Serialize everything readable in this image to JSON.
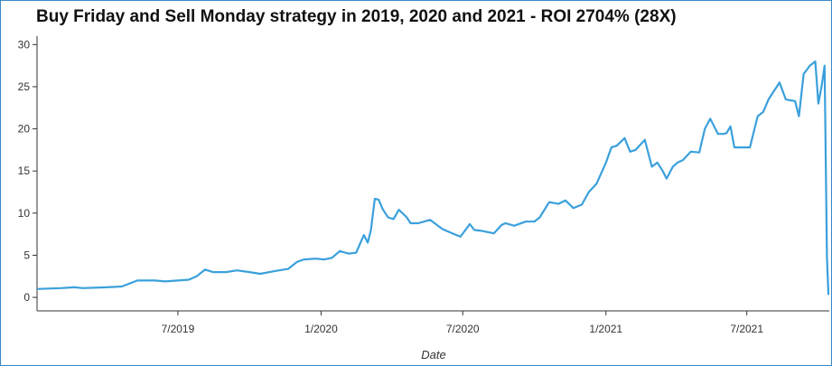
{
  "chart_data": {
    "type": "line",
    "title": "Buy Friday and Sell Monday strategy in 2019, 2020 and 2021 - ROI 2704% (28X)",
    "xlabel": "Date",
    "ylabel": "",
    "x_range": [
      "2019-01-01",
      "2021-10-15"
    ],
    "ylim": [
      -1.6,
      31
    ],
    "y_ticks": [
      0,
      5,
      10,
      15,
      20,
      25,
      30
    ],
    "x_ticks": [
      {
        "date": "2019-07-01",
        "label": "7/2019"
      },
      {
        "date": "2020-01-01",
        "label": "1/2020"
      },
      {
        "date": "2020-07-01",
        "label": "7/2020"
      },
      {
        "date": "2021-01-01",
        "label": "1/2021"
      },
      {
        "date": "2021-07-01",
        "label": "7/2021"
      }
    ],
    "grid": false,
    "line_color": "#3aa0dc",
    "series": [
      {
        "x": [
          "2019-01-01",
          "2019-02-01",
          "2019-02-18",
          "2019-03-01",
          "2019-04-01",
          "2019-04-20",
          "2019-05-10",
          "2019-06-01",
          "2019-06-15",
          "2019-07-01",
          "2019-07-15",
          "2019-07-25",
          "2019-08-05",
          "2019-08-15",
          "2019-09-01",
          "2019-09-15",
          "2019-10-01",
          "2019-10-15",
          "2019-11-01",
          "2019-11-20",
          "2019-12-01",
          "2019-12-10",
          "2019-12-25",
          "2020-01-05",
          "2020-01-15",
          "2020-01-25",
          "2020-02-05",
          "2020-02-15",
          "2020-02-25",
          "2020-03-01",
          "2020-03-05",
          "2020-03-10",
          "2020-03-15",
          "2020-03-20",
          "2020-03-27",
          "2020-04-03",
          "2020-04-10",
          "2020-04-20",
          "2020-04-25",
          "2020-05-05",
          "2020-05-20",
          "2020-06-05",
          "2020-06-20",
          "2020-06-28",
          "2020-07-10",
          "2020-07-16",
          "2020-07-25",
          "2020-08-10",
          "2020-08-20",
          "2020-08-25",
          "2020-09-05",
          "2020-09-20",
          "2020-10-01",
          "2020-10-08",
          "2020-10-20",
          "2020-11-01",
          "2020-11-10",
          "2020-11-20",
          "2020-12-01",
          "2020-12-10",
          "2020-12-20",
          "2021-01-01",
          "2021-01-08",
          "2021-01-15",
          "2021-01-25",
          "2021-02-01",
          "2021-02-08",
          "2021-02-20",
          "2021-03-01",
          "2021-03-08",
          "2021-03-15",
          "2021-03-20",
          "2021-03-28",
          "2021-04-03",
          "2021-04-10",
          "2021-04-20",
          "2021-05-01",
          "2021-05-08",
          "2021-05-15",
          "2021-05-25",
          "2021-06-01",
          "2021-06-05",
          "2021-06-10",
          "2021-06-15",
          "2021-06-25",
          "2021-07-05",
          "2021-07-15",
          "2021-07-22",
          "2021-07-29",
          "2021-08-05",
          "2021-08-12",
          "2021-08-20",
          "2021-08-25",
          "2021-09-01",
          "2021-09-06",
          "2021-09-12",
          "2021-09-20",
          "2021-09-27",
          "2021-10-01",
          "2021-10-05",
          "2021-10-09",
          "2021-10-12",
          "2021-10-14"
        ],
        "y": [
          1.0,
          1.1,
          1.2,
          1.1,
          1.2,
          1.3,
          2.0,
          2.0,
          1.9,
          2.0,
          2.1,
          2.5,
          3.3,
          3.0,
          3.0,
          3.2,
          3.0,
          2.8,
          3.1,
          3.4,
          4.2,
          4.5,
          4.6,
          4.5,
          4.7,
          5.5,
          5.2,
          5.3,
          7.4,
          6.5,
          8.0,
          11.7,
          11.6,
          10.5,
          9.5,
          9.3,
          10.4,
          9.5,
          8.8,
          8.8,
          9.2,
          8.1,
          7.5,
          7.2,
          8.7,
          8.0,
          7.9,
          7.6,
          8.6,
          8.8,
          8.5,
          9.0,
          9.0,
          9.5,
          11.3,
          11.1,
          11.5,
          10.6,
          11.0,
          12.5,
          13.5,
          16.0,
          17.8,
          18.0,
          18.9,
          17.3,
          17.5,
          18.7,
          15.5,
          16.0,
          15.0,
          14.1,
          15.5,
          16.0,
          16.3,
          17.3,
          17.2,
          20.0,
          21.2,
          19.4,
          19.4,
          19.5,
          20.3,
          17.8,
          17.8,
          17.8,
          21.5,
          22.0,
          23.5,
          24.5,
          25.5,
          23.5,
          23.4,
          23.3,
          21.5,
          26.5,
          27.5,
          28.0,
          23.0,
          25.0,
          27.5,
          4.8,
          0.3
        ]
      }
    ]
  }
}
